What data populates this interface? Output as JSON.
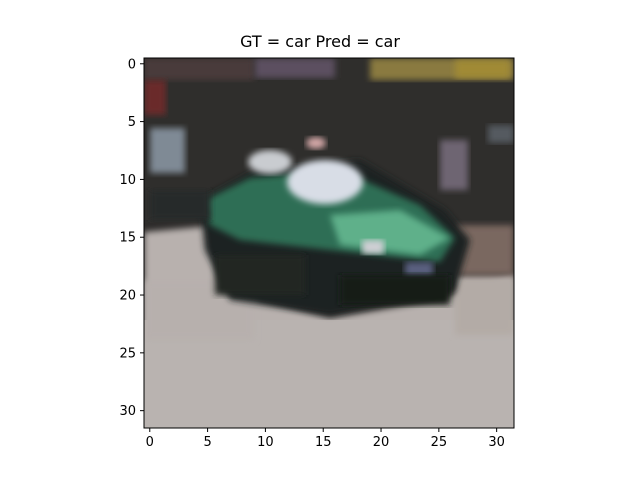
{
  "figure": {
    "title": "GT = car Pred = car"
  },
  "chart_data": {
    "type": "image",
    "title": "GT = car Pred = car",
    "image_size": [
      32,
      32
    ],
    "xlim": [
      -0.5,
      31.5
    ],
    "ylim": [
      31.5,
      -0.5
    ],
    "x_ticks": [
      "0",
      "5",
      "10",
      "15",
      "20",
      "25",
      "30"
    ],
    "y_ticks": [
      "0",
      "5",
      "10",
      "15",
      "20",
      "25",
      "30"
    ]
  }
}
